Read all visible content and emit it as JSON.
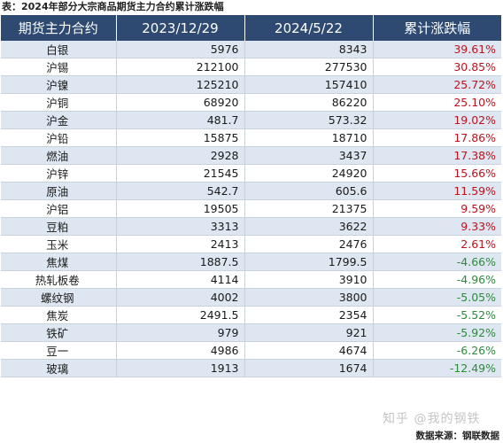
{
  "caption": "表：2024年部分大宗商品期货主力合约累计涨跌幅",
  "headers": [
    "期货主力合约",
    "2023/12/29",
    "2024/5/22",
    "累计涨跌幅"
  ],
  "colors": {
    "header_bg": "#2e4a73",
    "stripe_bg": "#dde6f1",
    "positive": "#c0121e",
    "negative": "#2f8a3c"
  },
  "rows": [
    {
      "name": "白银",
      "start": "5976",
      "end": "8343",
      "change": "39.61%",
      "direction": "up"
    },
    {
      "name": "沪锡",
      "start": "212100",
      "end": "277530",
      "change": "30.85%",
      "direction": "up"
    },
    {
      "name": "沪镍",
      "start": "125210",
      "end": "157410",
      "change": "25.72%",
      "direction": "up"
    },
    {
      "name": "沪铜",
      "start": "68920",
      "end": "86220",
      "change": "25.10%",
      "direction": "up"
    },
    {
      "name": "沪金",
      "start": "481.7",
      "end": "573.32",
      "change": "19.02%",
      "direction": "up"
    },
    {
      "name": "沪铅",
      "start": "15875",
      "end": "18710",
      "change": "17.86%",
      "direction": "up"
    },
    {
      "name": "燃油",
      "start": "2928",
      "end": "3437",
      "change": "17.38%",
      "direction": "up"
    },
    {
      "name": "沪锌",
      "start": "21545",
      "end": "24920",
      "change": "15.66%",
      "direction": "up"
    },
    {
      "name": "原油",
      "start": "542.7",
      "end": "605.6",
      "change": "11.59%",
      "direction": "up"
    },
    {
      "name": "沪铝",
      "start": "19505",
      "end": "21375",
      "change": "9.59%",
      "direction": "up"
    },
    {
      "name": "豆粕",
      "start": "3313",
      "end": "3622",
      "change": "9.33%",
      "direction": "up"
    },
    {
      "name": "玉米",
      "start": "2413",
      "end": "2476",
      "change": "2.61%",
      "direction": "up"
    },
    {
      "name": "焦煤",
      "start": "1887.5",
      "end": "1799.5",
      "change": "-4.66%",
      "direction": "down"
    },
    {
      "name": "热轧板卷",
      "start": "4114",
      "end": "3910",
      "change": "-4.96%",
      "direction": "down"
    },
    {
      "name": "螺纹钢",
      "start": "4002",
      "end": "3800",
      "change": "-5.05%",
      "direction": "down"
    },
    {
      "name": "焦炭",
      "start": "2491.5",
      "end": "2354",
      "change": "-5.52%",
      "direction": "down"
    },
    {
      "name": "铁矿",
      "start": "979",
      "end": "921",
      "change": "-5.92%",
      "direction": "down"
    },
    {
      "name": "豆一",
      "start": "4986",
      "end": "4674",
      "change": "-6.26%",
      "direction": "down"
    },
    {
      "name": "玻璃",
      "start": "1913",
      "end": "1674",
      "change": "-12.49%",
      "direction": "down"
    }
  ],
  "watermark": "知乎 @我的钢铁",
  "source": "数据来源：钢联数据"
}
